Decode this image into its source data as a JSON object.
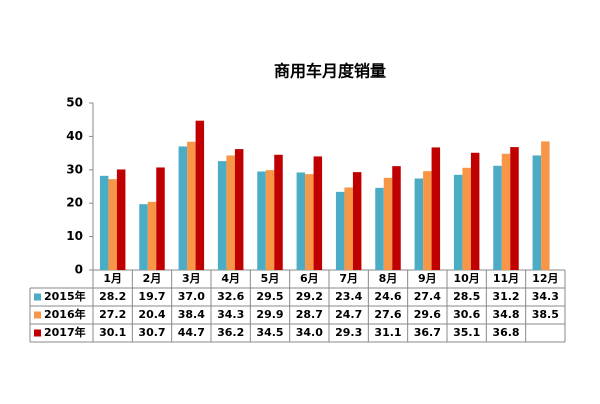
{
  "chart_data": {
    "type": "bar",
    "title": "商用车月度销量",
    "categories": [
      "1月",
      "2月",
      "3月",
      "4月",
      "5月",
      "6月",
      "7月",
      "8月",
      "9月",
      "10月",
      "11月",
      "12月"
    ],
    "series": [
      {
        "name": "2015年",
        "color": "#4bacc6",
        "values": [
          28.2,
          19.7,
          37,
          32.6,
          29.5,
          29.2,
          23.4,
          24.6,
          27.4,
          28.5,
          31.2,
          34.3
        ],
        "value_labels": [
          "28.2",
          "19.7",
          "37.0",
          "32.6",
          "29.5",
          "29.2",
          "23.4",
          "24.6",
          "27.4",
          "28.5",
          "31.2",
          "34.3"
        ]
      },
      {
        "name": "2016年",
        "color": "#f79646",
        "values": [
          27.2,
          20.4,
          38.4,
          34.3,
          29.9,
          28.7,
          24.7,
          27.6,
          29.6,
          30.6,
          34.8,
          38.5
        ],
        "value_labels": [
          "27.2",
          "20.4",
          "38.4",
          "34.3",
          "29.9",
          "28.7",
          "24.7",
          "27.6",
          "29.6",
          "30.6",
          "34.8",
          "38.5"
        ]
      },
      {
        "name": "2017年",
        "color": "#c00000",
        "values": [
          30.1,
          30.7,
          44.7,
          36.2,
          34.5,
          34,
          29.3,
          31.1,
          36.7,
          35.1,
          36.8,
          null
        ],
        "value_labels": [
          "30.1",
          "30.7",
          "44.7",
          "36.2",
          "34.5",
          "34.0",
          "29.3",
          "31.1",
          "36.7",
          "35.1",
          "36.8",
          null
        ]
      }
    ],
    "ylim": [
      0,
      50
    ],
    "yticks": [
      0,
      10,
      20,
      30,
      40,
      50
    ],
    "grid": false
  }
}
